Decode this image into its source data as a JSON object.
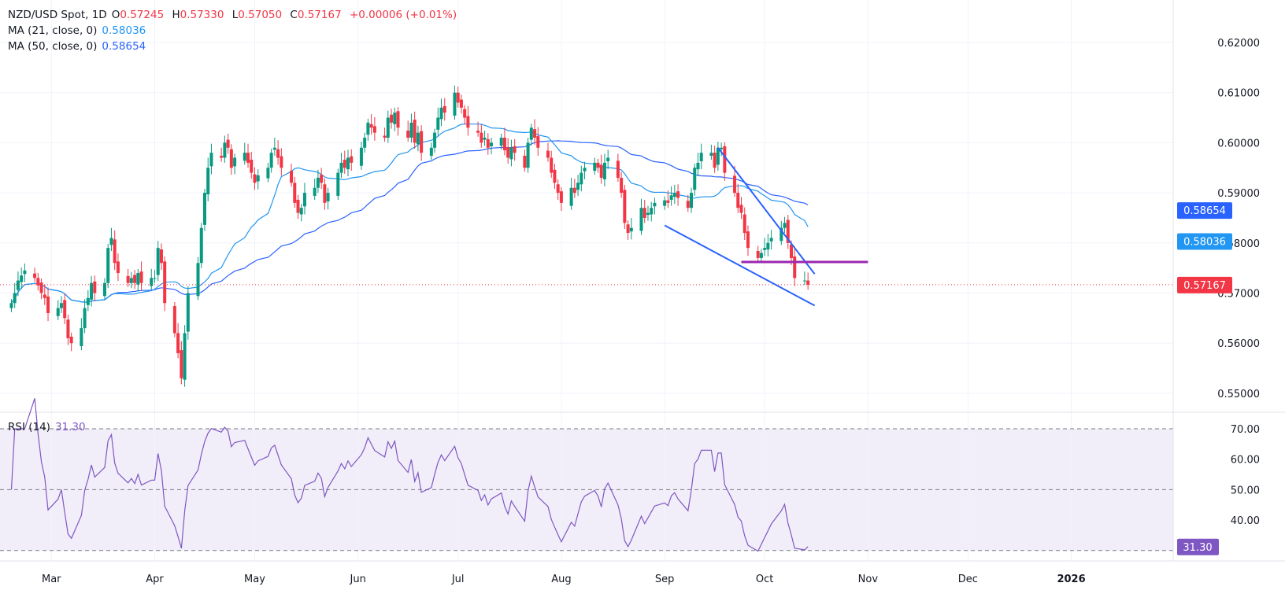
{
  "header": {
    "symbol": "NZD/USD Spot, 1D",
    "open_label": "O",
    "open": "0.57245",
    "high_label": "H",
    "high": "0.57330",
    "low_label": "L",
    "low": "0.57050",
    "close_label": "C",
    "close": "0.57167",
    "change": "+0.00006 (+0.01%)",
    "ma21_label": "MA (21, close, 0)",
    "ma21_value": "0.58036",
    "ma50_label": "MA (50, close, 0)",
    "ma50_value": "0.58654",
    "rsi_label": "RSI (14)",
    "rsi_value": "31.30"
  },
  "colors": {
    "up": "#089981",
    "down": "#f23645",
    "ma21": "#2196f3",
    "ma50": "#2962ff",
    "rsi": "#7e57c2",
    "trendline": "#2962ff",
    "resistance": "#9c27b0"
  },
  "chart_data": [
    {
      "type": "candlestick",
      "title": "NZD/USD Spot, 1D",
      "x_first_bar": "2025-02-17",
      "x_last_bar": "2025-10-14",
      "closes": [
        0.568,
        0.57,
        0.5725,
        0.5735,
        0.5745,
        0.573,
        0.5715,
        0.57,
        0.569,
        0.566,
        0.567,
        0.568,
        0.565,
        0.561,
        0.56,
        0.563,
        0.567,
        0.569,
        0.572,
        0.57,
        0.572,
        0.579,
        0.581,
        0.576,
        0.574,
        0.572,
        0.573,
        0.572,
        0.574,
        0.572,
        0.573,
        0.573,
        0.579,
        0.576,
        0.568,
        0.562,
        0.558,
        0.553,
        0.562,
        0.57,
        0.576,
        0.583,
        0.59,
        0.595,
        0.598,
        0.597,
        0.6,
        0.599,
        0.595,
        0.597,
        0.598,
        0.596,
        0.594,
        0.592,
        0.5935,
        0.595,
        0.598,
        0.599,
        0.597,
        0.595,
        0.592,
        0.588,
        0.586,
        0.587,
        0.59,
        0.591,
        0.593,
        0.592,
        0.588,
        0.59,
        0.594,
        0.596,
        0.595,
        0.597,
        0.596,
        0.599,
        0.601,
        0.604,
        0.603,
        0.602,
        0.601,
        0.605,
        0.604,
        0.606,
        0.603,
        0.601,
        0.604,
        0.6,
        0.602,
        0.598,
        0.599,
        0.602,
        0.605,
        0.607,
        0.606,
        0.61,
        0.608,
        0.607,
        0.605,
        0.603,
        0.602,
        0.6,
        0.601,
        0.599,
        0.6,
        0.601,
        0.5985,
        0.597,
        0.599,
        0.598,
        0.595,
        0.6,
        0.603,
        0.601,
        0.599,
        0.597,
        0.594,
        0.592,
        0.59,
        0.588,
        0.591,
        0.59,
        0.592,
        0.594,
        0.595,
        0.596,
        0.595,
        0.593,
        0.596,
        0.597,
        0.593,
        0.59,
        0.584,
        0.582,
        0.583,
        0.587,
        0.585,
        0.586,
        0.587,
        0.588,
        0.5885,
        0.588,
        0.5895,
        0.59,
        0.589,
        0.587,
        0.59,
        0.595,
        0.596,
        0.598,
        0.598,
        0.595,
        0.599,
        0.599,
        0.594,
        0.59,
        0.587,
        0.586,
        0.582,
        0.579,
        0.577,
        0.578,
        0.579,
        0.58,
        0.581,
        0.583,
        0.584,
        0.58,
        0.577,
        0.573,
        0.5725,
        0.57167
      ],
      "ylim": [
        0.545,
        0.626
      ],
      "y_ticks": [
        "0.62000",
        "0.61000",
        "0.60000",
        "0.59000",
        "0.58000",
        "0.57000",
        "0.56000",
        "0.55000"
      ],
      "x_ticks": [
        "Mar",
        "Apr",
        "May",
        "Jun",
        "Jul",
        "Aug",
        "Sep",
        "Oct",
        "Nov",
        "Dec",
        "2026"
      ],
      "x_tick_dates": [
        "2025-03-01",
        "2025-04-01",
        "2025-05-01",
        "2025-06-01",
        "2025-07-01",
        "2025-08-01",
        "2025-09-01",
        "2025-10-01",
        "2025-11-01",
        "2025-12-01",
        "2026-01-01"
      ],
      "x_range": [
        "2025-02-15",
        "2026-01-20"
      ],
      "price_badges": [
        {
          "label": "0.58654",
          "series": "ma50"
        },
        {
          "label": "0.58036",
          "series": "ma21"
        },
        {
          "label": "0.57167",
          "series": "close"
        }
      ],
      "drawings": {
        "upper_trendline": [
          [
            "2025-09-17",
            0.599
          ],
          [
            "2025-10-16",
            0.5738
          ]
        ],
        "lower_trendline": [
          [
            "2025-09-01",
            0.5835
          ],
          [
            "2025-10-16",
            0.5675
          ]
        ],
        "horizontal_level": [
          [
            "2025-09-24",
            0.5762
          ],
          [
            "2025-11-01",
            0.5762
          ]
        ]
      },
      "grid": true
    },
    {
      "type": "line",
      "title": "RSI (14)",
      "ylim": [
        30,
        73
      ],
      "y_ticks": [
        "70.00",
        "60.00",
        "50.00",
        "40.00"
      ],
      "bands": [
        70,
        50,
        30
      ],
      "last_value": "31.30"
    }
  ]
}
